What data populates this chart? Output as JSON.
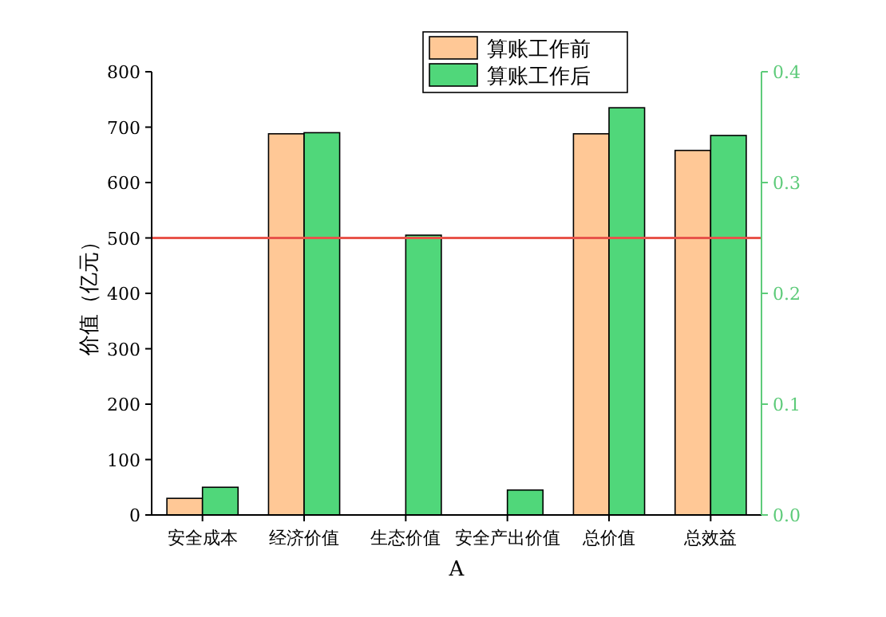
{
  "chart_data": {
    "type": "bar",
    "xlabel": "A",
    "ylabel": "价值（亿元）",
    "categories": [
      "安全成本",
      "经济价值",
      "生态价值",
      "安全产出价值",
      "总价值",
      "总效益"
    ],
    "series": [
      {
        "name": "算账工作前",
        "color": "#ffc896",
        "values": [
          30,
          688,
          null,
          null,
          688,
          658
        ]
      },
      {
        "name": "算账工作后",
        "color": "#50d77a",
        "values": [
          50,
          690,
          505,
          45,
          735,
          685
        ]
      }
    ],
    "ylim": [
      0,
      800
    ],
    "yticks": [
      0,
      100,
      200,
      300,
      400,
      500,
      600,
      700,
      800
    ],
    "y2lim": [
      0,
      0.4
    ],
    "y2ticks": [
      {
        "value": 0,
        "label": "0.0"
      },
      0.1,
      0.2,
      0.3,
      0.4
    ],
    "ref_lines": [
      {
        "axis": "y2",
        "value": 0.25,
        "color": "#e8534a"
      }
    ],
    "legend": "top"
  }
}
